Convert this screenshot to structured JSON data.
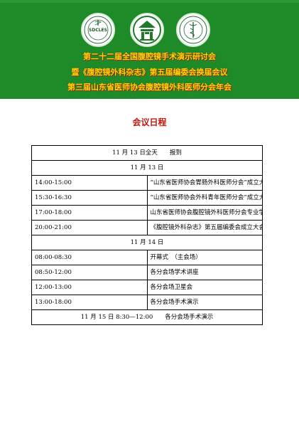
{
  "header": {
    "logos": [
      {
        "icon": "sdcles-seal-icon",
        "text": "SDCLES"
      },
      {
        "icon": "medical-association-emblem-icon",
        "text": ""
      },
      {
        "icon": "caduceus-seal-icon",
        "text": ""
      }
    ],
    "line1": "第二十二届全国腹腔镜手术演示研讨会",
    "line2": "暨《腹腔镜外科杂志》第五届编委会换届会议",
    "line3": "第三届山东省医师协会腹腔镜外科医师分会年会",
    "colors": {
      "background": "#1e8a28",
      "text": "#ffd800"
    }
  },
  "title": "会议日程",
  "schedule": {
    "rows": [
      {
        "type": "full",
        "text": "11 月 13 日全天　　报到"
      },
      {
        "type": "full",
        "text": "11 月 13 日"
      },
      {
        "type": "item",
        "time": "14:00-15:00",
        "event": "“山东省医师协会胃肠外科医师分会”成立大会"
      },
      {
        "type": "item",
        "time": "15:30-16:30",
        "event": "“山东省医师协会外科青年医师分会”成立大会"
      },
      {
        "type": "item",
        "time": "17:00-18:00",
        "event": "山东省医师协会腹腔镜外科医师分会专业学组成立会议"
      },
      {
        "type": "item",
        "time": "20:00-21:00",
        "event": "《腹腔镜外科杂志》第五届编委会成立大会"
      },
      {
        "type": "full",
        "text": "11 月 14 日"
      },
      {
        "type": "item",
        "time": "08:00-08:30",
        "event": "开幕式　（主会场）"
      },
      {
        "type": "item",
        "time": "08:50-12:00",
        "event": "各分会场学术讲座"
      },
      {
        "type": "item",
        "time": "12:00-13:00",
        "event": "各分会场卫星会"
      },
      {
        "type": "item",
        "time": "13:00-18:00",
        "event": "各分会场手术演示"
      },
      {
        "type": "full",
        "text": "11 月 15 日 8:30—12:00　　各分会场手术演示"
      }
    ]
  }
}
